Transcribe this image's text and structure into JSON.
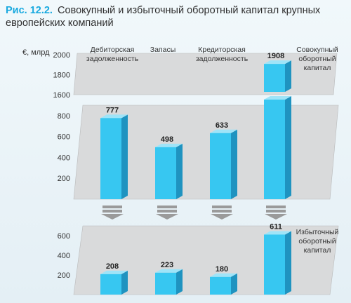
{
  "title": {
    "figure_label": "Рис. 12.2.",
    "text": "Совокупный и избыточный оборотный капитал крупных европейских компаний"
  },
  "unit_label": "€, млрд",
  "categories": [
    "Дебиторская задолженность",
    "Запасы",
    "Кредиторская задолженность"
  ],
  "series_labels": {
    "total": "Совокупный оборотный капитал",
    "excess": "Избыточный оборотный капитал"
  },
  "colors": {
    "bar_front": "#37c7f1",
    "bar_side": "#1f93c0",
    "bar_top": "#9fe4f8",
    "panel": "#d9dadb",
    "panel_edge": "#b9babb",
    "arrow": "#9a9a9a",
    "title_accent": "#18a9df"
  },
  "chart_data": [
    {
      "type": "bar",
      "name": "top",
      "categories": [
        "Дебиторская задолженность",
        "Запасы",
        "Кредиторская задолженность",
        "Совокупный оборотный капитал"
      ],
      "values": [
        777,
        498,
        633,
        1908
      ],
      "value_labels": [
        "777",
        "498",
        "633",
        "1908"
      ],
      "yticks": [
        "200",
        "400",
        "600",
        "800",
        "1600",
        "1800",
        "2000"
      ],
      "ylabel": "€, млрд",
      "axis_break": [
        900,
        1600
      ],
      "grid": false
    },
    {
      "type": "bar",
      "name": "bottom",
      "categories": [
        "Дебиторская задолженность",
        "Запасы",
        "Кредиторская задолженность",
        "Избыточный оборотный капитал"
      ],
      "values": [
        208,
        223,
        180,
        611
      ],
      "value_labels": [
        "208",
        "223",
        "180",
        "611"
      ],
      "yticks": [
        "200",
        "400",
        "600"
      ],
      "grid": false
    }
  ]
}
